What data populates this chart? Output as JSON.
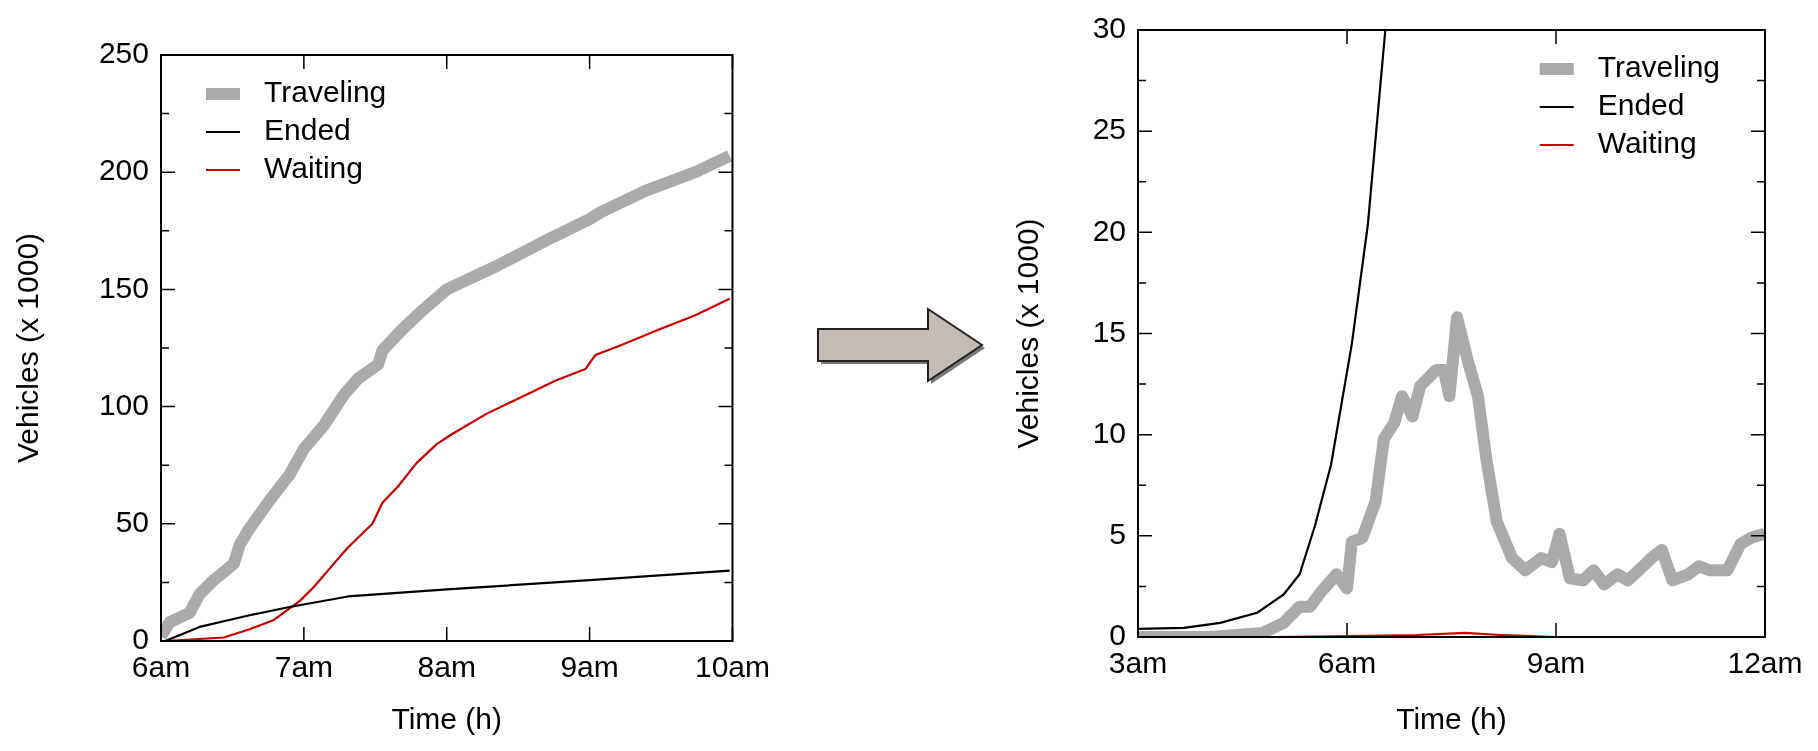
{
  "chart_data": [
    {
      "type": "line",
      "xlabel": "Time (h)",
      "ylabel": "Vehicles (x 1000)",
      "xlim": [
        6,
        10
      ],
      "xticks": [
        {
          "value": 6,
          "label": "6am"
        },
        {
          "value": 7,
          "label": "7am"
        },
        {
          "value": 8,
          "label": "8am"
        },
        {
          "value": 9,
          "label": "9am"
        },
        {
          "value": 10,
          "label": "10am"
        }
      ],
      "ylim": [
        0,
        250
      ],
      "yticks": [
        0,
        {
          "value": 25,
          "label": null
        },
        50,
        {
          "value": 75,
          "label": null
        },
        100,
        {
          "value": 125,
          "label": null
        },
        150,
        {
          "value": 175,
          "label": null
        },
        200,
        {
          "value": 225,
          "label": null
        },
        250
      ],
      "grid": false,
      "legend": "top left",
      "series": [
        {
          "name": "Traveling",
          "color": "#aaaaaa",
          "x": [
            6.0,
            6.06,
            6.2,
            6.27,
            6.37,
            6.51,
            6.55,
            6.62,
            6.76,
            6.9,
            7.0,
            7.14,
            7.28,
            7.38,
            7.52,
            7.55,
            7.69,
            7.83,
            8.0,
            8.35,
            8.7,
            9.0,
            9.08,
            9.39,
            9.74,
            9.98
          ],
          "values": [
            2,
            8,
            12,
            20,
            26,
            33,
            41,
            48,
            60,
            71,
            82,
            92,
            105,
            112,
            118,
            124,
            133,
            141,
            150,
            160,
            171,
            180,
            183,
            192,
            200,
            207
          ]
        },
        {
          "name": "Ended",
          "color": "#000000",
          "x": [
            6.03,
            6.27,
            6.62,
            6.9,
            7.31,
            8.0,
            9.0,
            9.98
          ],
          "values": [
            0,
            6,
            11,
            14.5,
            19,
            22,
            26,
            30
          ]
        },
        {
          "name": "Waiting",
          "color": "#cc0000",
          "x": [
            6.03,
            6.44,
            6.62,
            6.79,
            6.97,
            7.07,
            7.21,
            7.31,
            7.48,
            7.55,
            7.66,
            7.79,
            7.93,
            8.03,
            8.28,
            8.52,
            8.76,
            8.97,
            9.04,
            9.21,
            9.49,
            9.74,
            9.98
          ],
          "values": [
            0,
            1.5,
            5,
            9,
            17,
            23,
            33,
            40,
            50,
            59,
            66,
            76,
            84,
            88,
            97,
            104,
            111,
            116,
            122,
            126,
            133,
            139,
            146
          ]
        }
      ]
    },
    {
      "type": "line",
      "xlabel": "Time (h)",
      "ylabel": "Vehicles (x 1000)",
      "xlim": [
        3,
        12
      ],
      "xticks": [
        {
          "value": 3,
          "label": "3am"
        },
        {
          "value": 6,
          "label": "6am"
        },
        {
          "value": 9,
          "label": "9am"
        },
        {
          "value": 12,
          "label": "12am"
        }
      ],
      "ylim": [
        0,
        30
      ],
      "yticks": [
        0,
        {
          "value": 2.5,
          "label": null
        },
        5,
        {
          "value": 7.5,
          "label": null
        },
        10,
        {
          "value": 12.5,
          "label": null
        },
        15,
        {
          "value": 17.5,
          "label": null
        },
        20,
        {
          "value": 22.5,
          "label": null
        },
        25,
        {
          "value": 27.5,
          "label": null
        },
        30
      ],
      "grid": false,
      "legend": "top right",
      "series": [
        {
          "name": "Traveling",
          "color": "#aaaaaa",
          "x": [
            3,
            4.03,
            4.79,
            5.09,
            5.32,
            5.47,
            5.62,
            5.85,
            6.0,
            6.07,
            6.22,
            6.41,
            6.53,
            6.68,
            6.79,
            6.94,
            7.05,
            7.28,
            7.39,
            7.47,
            7.58,
            7.73,
            7.88,
            8.0,
            8.15,
            8.37,
            8.56,
            8.79,
            8.94,
            9.05,
            9.2,
            9.39,
            9.54,
            9.69,
            9.88,
            10.03,
            10.22,
            10.37,
            10.52,
            10.67,
            10.9,
            11.05,
            11.2,
            11.46,
            11.65,
            11.8,
            12.0
          ],
          "values": [
            0,
            0,
            0.2,
            0.7,
            1.5,
            1.5,
            2.2,
            3.1,
            2.4,
            4.7,
            4.9,
            6.7,
            9.8,
            10.6,
            11.9,
            10.9,
            12.4,
            13.2,
            13.2,
            11.9,
            15.8,
            13.7,
            11.9,
            8.8,
            5.7,
            3.9,
            3.3,
            3.9,
            3.7,
            5.1,
            2.9,
            2.8,
            3.3,
            2.6,
            3.1,
            2.8,
            3.4,
            3.9,
            4.3,
            2.8,
            3.1,
            3.5,
            3.3,
            3.3,
            4.6,
            4.9,
            5.1
          ]
        },
        {
          "name": "Ended",
          "color": "#000000",
          "x": [
            3,
            3.66,
            4.18,
            4.71,
            5.09,
            5.32,
            5.54,
            5.77,
            6.07,
            6.3,
            6.55
          ],
          "values": [
            0.4,
            0.45,
            0.7,
            1.2,
            2.1,
            3.1,
            5.5,
            8.5,
            14.5,
            20.4,
            30
          ]
        },
        {
          "name": "Waiting",
          "color": "#cc0000",
          "x": [
            3,
            5,
            6,
            7,
            7.7,
            8.2,
            9
          ],
          "values": [
            0,
            0,
            0.05,
            0.1,
            0.2,
            0.1,
            0
          ]
        }
      ]
    }
  ]
}
